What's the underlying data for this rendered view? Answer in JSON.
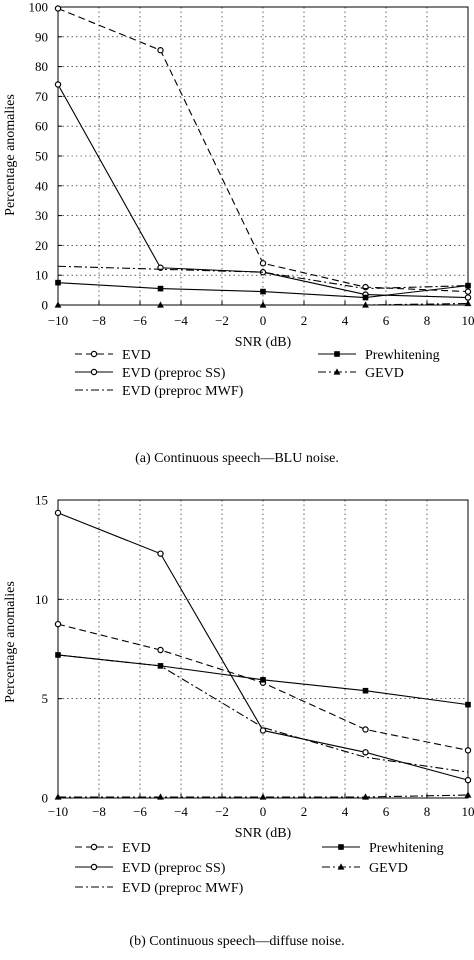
{
  "chart_data": [
    {
      "type": "line",
      "caption": "(a) Continuous speech—BLU noise.",
      "xlabel": "SNR (dB)",
      "ylabel": "Percentage anomalies",
      "xlim": [
        -10,
        10
      ],
      "ylim": [
        0,
        100
      ],
      "xticks": [
        -10,
        -8,
        -6,
        -4,
        -2,
        0,
        2,
        4,
        6,
        8,
        10
      ],
      "yticks": [
        0,
        10,
        20,
        30,
        40,
        50,
        60,
        70,
        80,
        90,
        100
      ],
      "grid": true,
      "legend_position": "below",
      "x": [
        -10,
        -5,
        0,
        5,
        10
      ],
      "series": [
        {
          "name": "EVD",
          "style": "dashed",
          "marker": "circle",
          "values": [
            99.5,
            85.5,
            14,
            6,
            4.5
          ]
        },
        {
          "name": "EVD (preproc SS)",
          "style": "solid",
          "marker": "circle",
          "values": [
            74,
            12.5,
            11,
            3.5,
            2.5
          ]
        },
        {
          "name": "EVD (preproc MWF)",
          "style": "dashdot",
          "marker": "none",
          "values": [
            13,
            12,
            11,
            5.5,
            6.5
          ]
        },
        {
          "name": "Prewhitening",
          "style": "solid",
          "marker": "square",
          "values": [
            7.5,
            5.5,
            4.5,
            2.5,
            6.5
          ]
        },
        {
          "name": "GEVD",
          "style": "dashdot",
          "marker": "triangle",
          "values": [
            0,
            0,
            0,
            0,
            0.5
          ]
        }
      ]
    },
    {
      "type": "line",
      "caption": "(b) Continuous speech—diffuse noise.",
      "xlabel": "SNR (dB)",
      "ylabel": "Percentage anomalies",
      "xlim": [
        -10,
        10
      ],
      "ylim": [
        0,
        15
      ],
      "xticks": [
        -10,
        -8,
        -6,
        -4,
        -2,
        0,
        2,
        4,
        6,
        8,
        10
      ],
      "yticks": [
        0,
        5,
        10,
        15
      ],
      "grid": true,
      "legend_position": "below",
      "x": [
        -10,
        -5,
        0,
        5,
        10
      ],
      "series": [
        {
          "name": "EVD",
          "style": "dashed",
          "marker": "circle",
          "values": [
            8.75,
            7.45,
            5.8,
            3.45,
            2.4
          ]
        },
        {
          "name": "EVD (preproc SS)",
          "style": "solid",
          "marker": "circle",
          "values": [
            14.35,
            12.3,
            3.4,
            2.3,
            0.9
          ]
        },
        {
          "name": "EVD (preproc MWF)",
          "style": "dashdot",
          "marker": "none",
          "values": [
            7.2,
            6.65,
            3.55,
            2.05,
            1.3
          ]
        },
        {
          "name": "Prewhitening",
          "style": "solid",
          "marker": "square",
          "values": [
            7.2,
            6.65,
            5.95,
            5.4,
            4.7
          ]
        },
        {
          "name": "GEVD",
          "style": "dashdot",
          "marker": "triangle",
          "values": [
            0.05,
            0.05,
            0.05,
            0.05,
            0.15
          ]
        }
      ]
    }
  ]
}
